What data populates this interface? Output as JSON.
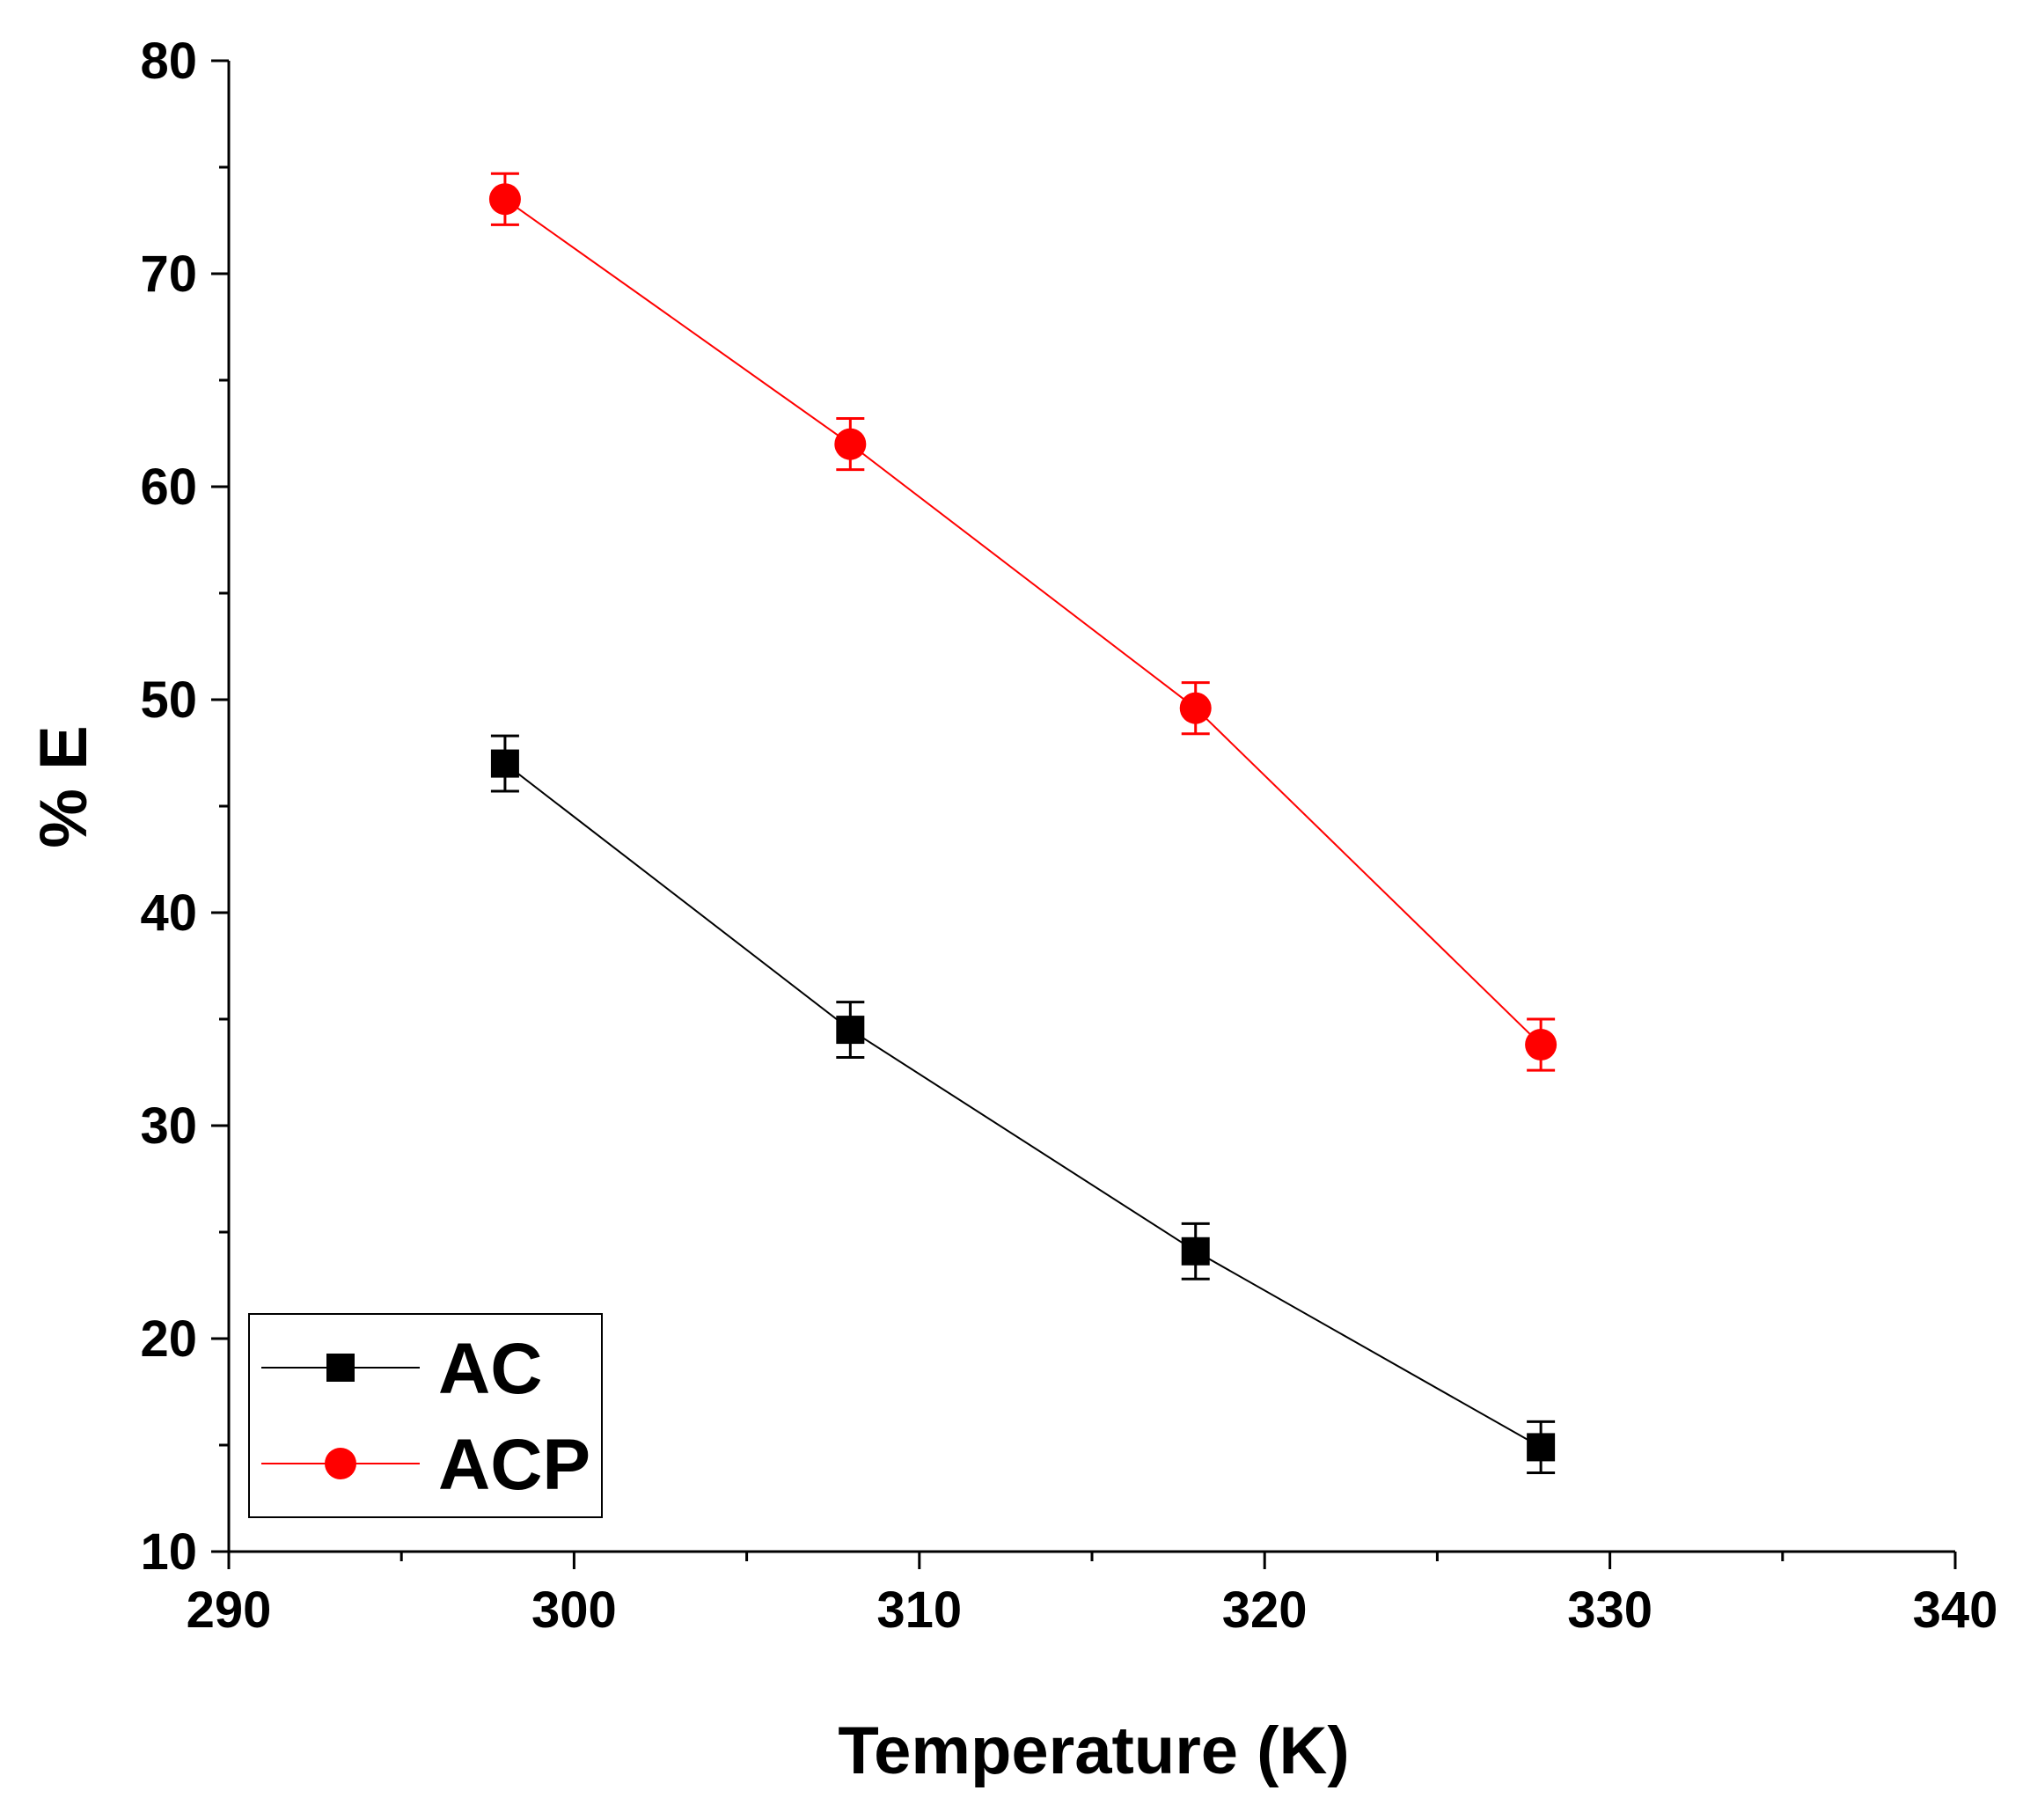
{
  "chart_data": {
    "type": "scatter",
    "title": "",
    "xlabel": "Temperature (K)",
    "ylabel": "% E",
    "xlim": [
      290,
      340
    ],
    "ylim": [
      10,
      80
    ],
    "xticks": [
      "290",
      "300",
      "310",
      "320",
      "330",
      "340"
    ],
    "yticks": [
      "10",
      "20",
      "30",
      "40",
      "50",
      "60",
      "70",
      "80"
    ],
    "grid": false,
    "legend_position": "bottom-left",
    "series": [
      {
        "name": "AC",
        "color": "#000000",
        "marker": "square",
        "x": [
          298,
          308,
          318,
          328
        ],
        "y": [
          47.0,
          34.5,
          24.1,
          14.9
        ],
        "error": [
          1.3,
          1.3,
          1.3,
          1.2
        ]
      },
      {
        "name": "ACP",
        "color": "#ff0000",
        "marker": "circle",
        "x": [
          298,
          308,
          318,
          328
        ],
        "y": [
          73.5,
          62.0,
          49.6,
          33.8
        ],
        "error": [
          1.2,
          1.2,
          1.2,
          1.2
        ]
      }
    ]
  }
}
